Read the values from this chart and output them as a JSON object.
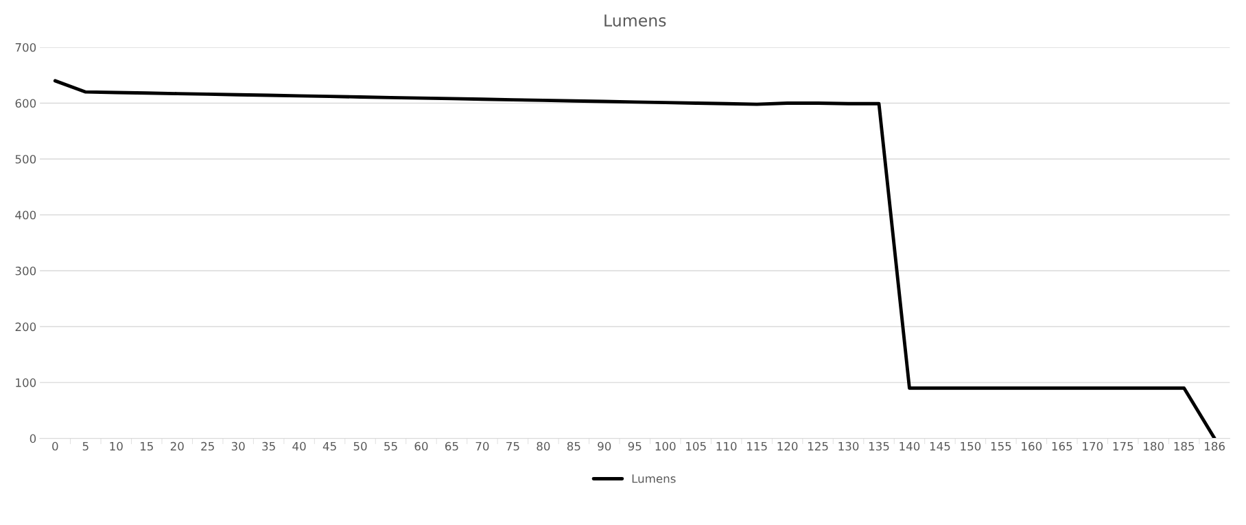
{
  "chart_data": {
    "type": "line",
    "title": "Lumens",
    "categories": [
      "0",
      "5",
      "10",
      "15",
      "20",
      "25",
      "30",
      "35",
      "40",
      "45",
      "50",
      "55",
      "60",
      "65",
      "70",
      "75",
      "80",
      "85",
      "90",
      "95",
      "100",
      "105",
      "110",
      "115",
      "120",
      "125",
      "130",
      "135",
      "140",
      "145",
      "150",
      "155",
      "160",
      "165",
      "170",
      "175",
      "180",
      "185",
      "186"
    ],
    "series": [
      {
        "name": "Lumens",
        "color": "#000000",
        "values": [
          640,
          620,
          619,
          618,
          617,
          616,
          615,
          614,
          613,
          612,
          611,
          610,
          609,
          608,
          607,
          606,
          605,
          604,
          603,
          602,
          601,
          600,
          599,
          598,
          600,
          600,
          599,
          599,
          90,
          90,
          90,
          90,
          90,
          90,
          90,
          90,
          90,
          90,
          0
        ]
      }
    ],
    "ylim": [
      0,
      700
    ],
    "yticks": [
      0,
      100,
      200,
      300,
      400,
      500,
      600,
      700
    ],
    "grid": "y",
    "legend": "bottom",
    "marker": "none",
    "line_style": "solid"
  }
}
